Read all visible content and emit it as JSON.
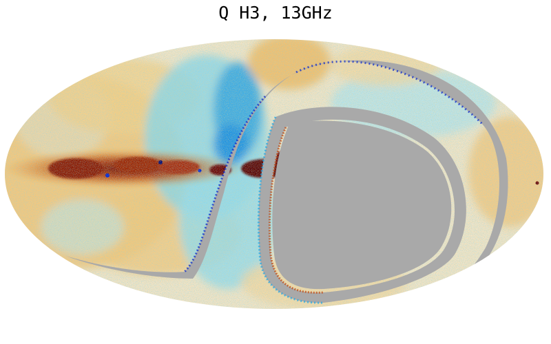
{
  "title": "Q H3, 13GHz",
  "map": {
    "projection": "mollweide",
    "masked_color": "#a9a9a9",
    "colormap": [
      "#00006a",
      "#0021cf",
      "#1ca8ea",
      "#7de0ef",
      "#f6e7c4",
      "#f3c064",
      "#e98a1f",
      "#c0450c",
      "#6a0000"
    ]
  }
}
